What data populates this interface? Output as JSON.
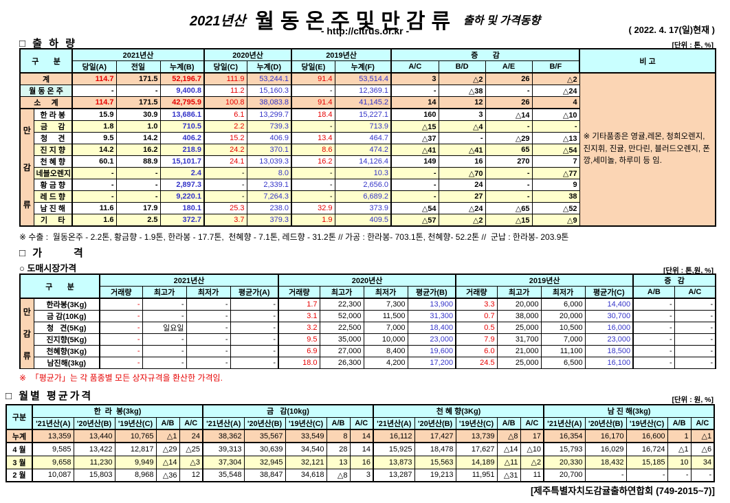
{
  "header": {
    "year_label": "2021년산",
    "title": "월동온주및만감류",
    "subtitle": "출하 및 가격동향",
    "url": "- http://citrus.or.kr -",
    "date": "( 2022. 4. 17(일)현재 )"
  },
  "colors": {
    "header_bg": "#c9ffff",
    "total_row_bg": "#fbd5b4",
    "alt_row_bg": "#ffffcc",
    "onju_label_bg": "#daf8f2",
    "red_value": "#e60000",
    "blue_value": "#3434c8"
  },
  "shipment": {
    "section_title": "□ 출 하 량",
    "unit": "[단위 : 톤, %]",
    "group_label": "만감류",
    "h": {
      "gubun": "구       분",
      "y21": "2021년산",
      "y20": "2020년산",
      "y19": "2019년산",
      "chg": "증       감",
      "remark": "비 고",
      "a": "당일(A)",
      "prev": "전일",
      "b": "누계(B)",
      "c": "당일(C)",
      "d": "누계(D)",
      "e": "당일(E)",
      "f": "누계(F)",
      "ac": "A/C",
      "bd": "B/D",
      "ae": "A/E",
      "bf": "B/F"
    },
    "rows": [
      {
        "label": "계",
        "type": "total",
        "values": [
          "114.7",
          "171.5",
          "52,196.7",
          "111.9",
          "53,244.1",
          "91.4",
          "53,514.4",
          "3",
          "△2",
          "26",
          "△2"
        ]
      },
      {
        "label": "월 동 온 주",
        "type": "onju",
        "values": [
          "-",
          "-",
          "9,400.8",
          "11.2",
          "15,160.3",
          "-",
          "12,369.1",
          "-",
          "△38",
          "-",
          "△24"
        ]
      },
      {
        "label": "소     계",
        "type": "total sub",
        "values": [
          "114.7",
          "171.5",
          "42,795.9",
          "100.8",
          "38,083.8",
          "91.4",
          "41,145.2",
          "14",
          "12",
          "26",
          "4"
        ]
      },
      {
        "label": "한 라 봉",
        "type": "item",
        "values": [
          "15.9",
          "30.9",
          "13,686.1",
          "6.1",
          "13,299.7",
          "18.4",
          "15,227.1",
          "160",
          "3",
          "△14",
          "△10"
        ]
      },
      {
        "label": "금     감",
        "type": "item",
        "values": [
          "1.8",
          "1.0",
          "710.5",
          "2.2",
          "739.3",
          "-",
          "713.9",
          "△15",
          "△4",
          "-",
          "-"
        ]
      },
      {
        "label": "청     견",
        "type": "item",
        "values": [
          "9.5",
          "14.2",
          "406.2",
          "15.2",
          "406.9",
          "13.4",
          "464.7",
          "△37",
          "-",
          "△29",
          "△13"
        ]
      },
      {
        "label": "진 지 향",
        "type": "item",
        "values": [
          "14.2",
          "16.2",
          "218.9",
          "24.2",
          "370.1",
          "8.6",
          "474.2",
          "△41",
          "△41",
          "65",
          "△54"
        ]
      },
      {
        "label": "천 혜 향",
        "type": "item",
        "values": [
          "60.1",
          "88.9",
          "15,101.7",
          "24.1",
          "13,039.3",
          "16.2",
          "14,126.4",
          "149",
          "16",
          "270",
          "7"
        ]
      },
      {
        "label": "네블오렌지",
        "type": "item",
        "values": [
          "-",
          "-",
          "2.4",
          "-",
          "8.0",
          "-",
          "10.3",
          "-",
          "△70",
          "-",
          "△77"
        ]
      },
      {
        "label": "황 금 향",
        "type": "item",
        "values": [
          "-",
          "-",
          "2,897.3",
          "-",
          "2,339.1",
          "-",
          "2,656.0",
          "-",
          "24",
          "-",
          "9"
        ]
      },
      {
        "label": "레 드 향",
        "type": "item",
        "values": [
          "-",
          "-",
          "9,220.1",
          "-",
          "7,264.3",
          "-",
          "6,689.2",
          "-",
          "27",
          "-",
          "38"
        ]
      },
      {
        "label": "남 진 해",
        "type": "item",
        "values": [
          "11.6",
          "17.9",
          "180.1",
          "25.3",
          "238.0",
          "32.9",
          "373.9",
          "△54",
          "△24",
          "△65",
          "△52"
        ]
      },
      {
        "label": "기     타",
        "type": "item",
        "values": [
          "1.6",
          "2.5",
          "372.7",
          "3.7",
          "379.3",
          "1.9",
          "409.5",
          "△57",
          "△2",
          "△15",
          "△9"
        ]
      }
    ],
    "remark": "※ 기타품종은 영귤,레몬, 청희오렌지, 진지휘, 진귤, 만다린, 블러드오렌지, 폰깡,세미놀, 하루미 등 임.",
    "footnote": "※ 수출 :  월동온주 - 2.2톤, 황금향 - 1.9톤, 한라봉 - 17.7톤,  천혜향 - 7.1톤, 레드향 - 31.2톤 // 가공 : 한라봉- 703.1톤, 천혜향- 52.2톤 //  군납 : 한라봉- 203.9톤"
  },
  "price": {
    "section_title": "□ 가      격",
    "sub_title": "○ 도매시장가격",
    "unit": "[단위 : 톤,원, %]",
    "group_label": "만감류",
    "h": {
      "gubun": "구       분",
      "y21": "2021년산",
      "y20": "2020년산",
      "y19": "2019년산",
      "chg": "증   감",
      "q": "거래량",
      "hi": "최고가",
      "lo": "최저가",
      "avgA": "평균가(A)",
      "avgB": "평균가(B)",
      "avgC": "평균가(C)",
      "ab": "A/B",
      "ac": "A/C"
    },
    "rows": [
      {
        "label": "한라봉(3Kg)",
        "values": [
          "-",
          "-",
          "-",
          "-",
          "1.7",
          "22,300",
          "7,300",
          "13,900",
          "3.3",
          "20,000",
          "6,000",
          "14,400",
          "-",
          "-"
        ]
      },
      {
        "label": "금 감(10Kg)",
        "values": [
          "-",
          "-",
          "-",
          "-",
          "3.1",
          "52,000",
          "11,500",
          "31,300",
          "0.7",
          "38,000",
          "20,000",
          "30,700",
          "-",
          "-"
        ]
      },
      {
        "label": "청   견(5Kg)",
        "values": [
          "-",
          "일요일",
          "-",
          "-",
          "3.2",
          "22,500",
          "7,000",
          "18,400",
          "0.5",
          "25,000",
          "10,500",
          "16,000",
          "-",
          "-"
        ]
      },
      {
        "label": "진지향(5Kg)",
        "values": [
          "-",
          "-",
          "-",
          "-",
          "9.5",
          "35,000",
          "10,000",
          "23,000",
          "7.9",
          "31,700",
          "7,000",
          "23,000",
          "-",
          "-"
        ]
      },
      {
        "label": "천혜향(3Kg)",
        "values": [
          "-",
          "-",
          "-",
          "-",
          "6.9",
          "27,000",
          "8,400",
          "19,600",
          "6.0",
          "21,000",
          "11,100",
          "18,500",
          "-",
          "-"
        ]
      },
      {
        "label": "남진해(3kg)",
        "values": [
          "-",
          "-",
          "-",
          "-",
          "18.0",
          "26,300",
          "4,200",
          "17,200",
          "24.5",
          "25,000",
          "6,500",
          "16,100",
          "-",
          "-"
        ]
      }
    ],
    "note": "※  「평균가」는 각 품종별 모든 상자규격을 환산한 가격임."
  },
  "monthly": {
    "section_title": "□ 월별 평균가격",
    "unit": "[단위 : 원, %]",
    "h": {
      "gubun": "구분",
      "g1": "한  라  봉(3kg)",
      "g2": "금   감(10kg)",
      "g3": "천 혜 향(3Kg)",
      "g4": "남 진 해(3kg)",
      "y21": "'21년산(A)",
      "y20": "'20년산(B)",
      "y19": "'19년산(C)",
      "ab": "A/B",
      "ac": "A/C"
    },
    "rows": [
      {
        "label": "누계",
        "type": "cum",
        "values": [
          "13,359",
          "13,440",
          "10,765",
          "△1",
          "24",
          "38,362",
          "35,567",
          "33,549",
          "8",
          "14",
          "16,112",
          "17,427",
          "13,739",
          "△8",
          "17",
          "16,354",
          "16,170",
          "16,600",
          "1",
          "△1"
        ]
      },
      {
        "label": "4 월",
        "type": "m",
        "values": [
          "9,585",
          "13,422",
          "12,817",
          "△29",
          "△25",
          "39,313",
          "30,639",
          "34,540",
          "28",
          "14",
          "15,925",
          "18,478",
          "17,627",
          "△14",
          "△10",
          "15,793",
          "16,029",
          "16,724",
          "△1",
          "△6"
        ]
      },
      {
        "label": "3 월",
        "type": "m alt",
        "values": [
          "9,658",
          "11,230",
          "9,949",
          "△14",
          "△3",
          "37,304",
          "32,945",
          "32,121",
          "13",
          "16",
          "13,873",
          "15,563",
          "14,189",
          "△11",
          "△2",
          "20,330",
          "18,432",
          "15,185",
          "10",
          "34"
        ]
      },
      {
        "label": "2 월",
        "type": "m",
        "values": [
          "10,087",
          "15,803",
          "8,968",
          "△36",
          "12",
          "35,548",
          "38,847",
          "34,618",
          "△8",
          "3",
          "13,287",
          "19,213",
          "11,951",
          "△31",
          "11",
          "20,700",
          "-",
          "-",
          "-",
          "-"
        ]
      }
    ]
  },
  "footer": "[제주특별자치도감귤출하연합회 (749-2015~7)]"
}
